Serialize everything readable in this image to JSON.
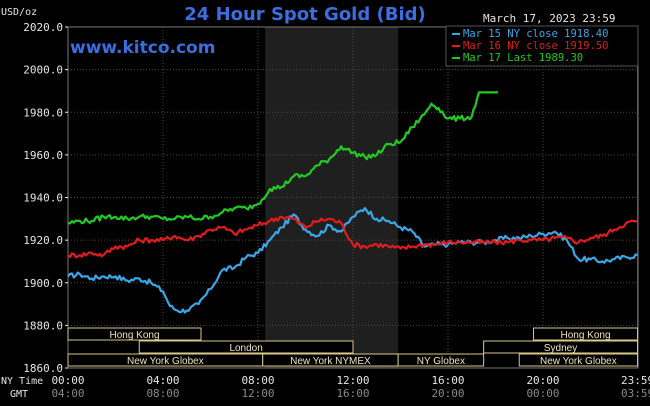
{
  "chart_data": {
    "type": "line",
    "title": "24 Hour Spot Gold (Bid)",
    "date_label": "March 17, 2023 23:59",
    "watermark": "www.kitco.com",
    "y_unit_label": "USD/oz",
    "ylim": [
      1860,
      2020
    ],
    "y_ticks": [
      "2020.0",
      "2000.0",
      "1980.0",
      "1960.0",
      "1940.0",
      "1920.0",
      "1900.0",
      "1880.0",
      "1860.0"
    ],
    "x_ticks_ny": [
      "00:00",
      "04:00",
      "08:00",
      "12:00",
      "16:00",
      "20:00",
      "23:59"
    ],
    "x_ticks_gmt": [
      "04:00",
      "08:00",
      "12:00",
      "16:00",
      "20:00",
      "00:00",
      "03:59"
    ],
    "x_row_labels": [
      "NY Time",
      "GMT"
    ],
    "shaded_range_hours": [
      8.3,
      13.9
    ],
    "colors": {
      "mar15": "#3aa7e8",
      "mar16": "#e01c1c",
      "mar17": "#22c922",
      "grid": "#4a4a4a",
      "axis": "#e6e6e6",
      "title": "#3b6ee0",
      "watermark": "#3b6ee0"
    },
    "legend": [
      {
        "text": "Mar 15 NY close 1918.40",
        "color": "#3aa7e8"
      },
      {
        "text": "Mar 16 NY close 1919.50",
        "color": "#e01c1c"
      },
      {
        "text": "Mar 17 Last 1989.30",
        "color": "#22c922"
      }
    ],
    "sessions": [
      {
        "label": "Hong Kong",
        "row": 0,
        "start": 0.0,
        "end": 5.6
      },
      {
        "label": "London",
        "row": 1,
        "start": 3.0,
        "end": 12.0
      },
      {
        "label": "New York Globex",
        "row": 2,
        "start": 0.0,
        "end": 8.2
      },
      {
        "label": "New York NYMEX",
        "row": 2,
        "start": 8.2,
        "end": 13.9
      },
      {
        "label": "NY Globex",
        "row": 2,
        "start": 13.9,
        "end": 17.5
      },
      {
        "label": "Hong Kong",
        "row": 0,
        "start": 19.6,
        "end": 23.98
      },
      {
        "label": "Sydney",
        "row": 1,
        "start": 17.5,
        "end": 23.98
      },
      {
        "label": "New York Globex",
        "row": 2,
        "start": 19.0,
        "end": 23.98
      }
    ],
    "series": [
      {
        "name": "Mar 15",
        "color": "#3aa7e8",
        "x": [
          0,
          0.5,
          1,
          1.5,
          2,
          2.5,
          3,
          3.5,
          4,
          4.3,
          4.6,
          5,
          5.5,
          6,
          6.5,
          7,
          7.5,
          8,
          8.5,
          9,
          9.5,
          10,
          10.5,
          11,
          11.5,
          12,
          12.5,
          13,
          13.5,
          14,
          14.5,
          15,
          15.5,
          16,
          16.5,
          17,
          17.5,
          18,
          18.5,
          19,
          19.5,
          20,
          20.5,
          21,
          21.5,
          22,
          22.5,
          23,
          23.5,
          23.98
        ],
        "values": [
          1903,
          1904,
          1902,
          1903,
          1903,
          1901,
          1902,
          1900,
          1896,
          1889,
          1887,
          1887,
          1890,
          1897,
          1906,
          1907,
          1912,
          1914,
          1920,
          1926,
          1932,
          1925,
          1922,
          1927,
          1924,
          1931,
          1935,
          1930,
          1929,
          1926,
          1924,
          1917,
          1918,
          1918,
          1919,
          1919,
          1919,
          1920,
          1921,
          1921,
          1922,
          1923,
          1924,
          1920,
          1911,
          1911,
          1910,
          1911,
          1912,
          1913
        ]
      },
      {
        "name": "Mar 16",
        "color": "#e01c1c",
        "x": [
          0,
          0.5,
          1,
          1.5,
          2,
          2.5,
          3,
          3.5,
          4,
          4.5,
          5,
          5.5,
          6,
          6.5,
          7,
          7.5,
          8,
          8.5,
          9,
          9.5,
          10,
          10.5,
          11,
          11.5,
          12,
          12.5,
          13,
          13.5,
          14,
          14.5,
          15,
          15.5,
          16,
          16.5,
          17,
          17.5,
          18,
          18.5,
          19,
          19.5,
          20,
          20.5,
          21,
          21.5,
          22,
          22.5,
          23,
          23.5,
          23.98
        ],
        "values": [
          1913,
          1913,
          1914,
          1913,
          1917,
          1917,
          1920,
          1920,
          1920,
          1922,
          1920,
          1922,
          1925,
          1926,
          1923,
          1925,
          1927,
          1929,
          1931,
          1930,
          1926,
          1929,
          1930,
          1928,
          1918,
          1917,
          1918,
          1917,
          1916,
          1917,
          1918,
          1918,
          1919,
          1919,
          1919,
          1919,
          1919,
          1919,
          1920,
          1920,
          1920,
          1921,
          1921,
          1919,
          1921,
          1922,
          1925,
          1928,
          1929
        ]
      },
      {
        "name": "Mar 17",
        "color": "#22c922",
        "x": [
          0,
          0.5,
          1,
          1.5,
          2,
          2.5,
          3,
          3.5,
          4,
          4.5,
          5,
          5.5,
          6,
          6.5,
          7,
          7.5,
          8,
          8.5,
          9,
          9.5,
          10,
          10.5,
          11,
          11.5,
          12,
          12.5,
          13,
          13.5,
          14,
          14.5,
          15,
          15.3,
          15.6,
          16,
          16.5,
          17,
          17.3,
          18.1
        ],
        "values": [
          1928,
          1929,
          1929,
          1931,
          1931,
          1930,
          1931,
          1931,
          1930,
          1930,
          1931,
          1930,
          1931,
          1933,
          1935,
          1935,
          1937,
          1944,
          1945,
          1950,
          1950,
          1955,
          1958,
          1964,
          1961,
          1959,
          1960,
          1965,
          1966,
          1973,
          1979,
          1984,
          1982,
          1977,
          1977,
          1978,
          1989.3,
          1989.3
        ]
      }
    ]
  }
}
